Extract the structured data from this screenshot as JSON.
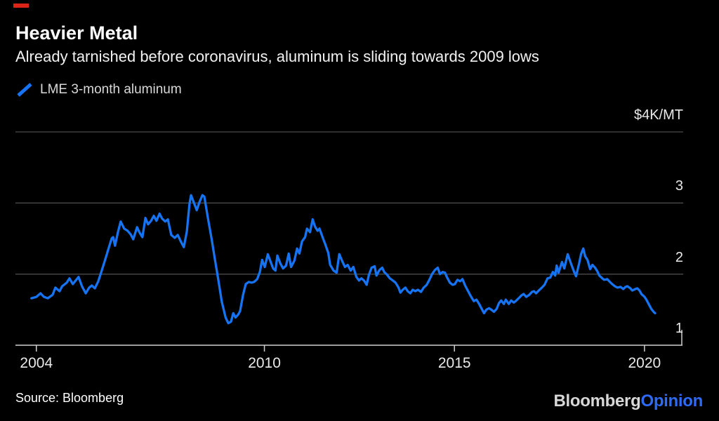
{
  "accent_color": "#dd2418",
  "header": {
    "title": "Heavier Metal",
    "subtitle": "Already tarnished before coronavirus, aluminum is sliding towards 2009 lows"
  },
  "legend": {
    "label": "LME 3-month aluminum",
    "color": "#1673f2"
  },
  "footer": {
    "source": "Source: Bloomberg",
    "logo": {
      "part1": "Bloomberg",
      "part2": "Opinion",
      "part2_color": "#2d6af5"
    }
  },
  "chart_data": {
    "type": "line",
    "title": "Heavier Metal",
    "ylabel": "$/MT",
    "xlabel": "",
    "grid": "horizontal",
    "legend_position": "top-left",
    "colors": {
      "gridline": "#4a4a4a",
      "axis": "#cfcfcf",
      "line": "#1673f2"
    },
    "x_range": [
      2003.45,
      2021.0
    ],
    "y_range": [
      1000,
      4000
    ],
    "y_ticks": [
      {
        "label": "$4K/MT",
        "value": 4000
      },
      {
        "label": "3",
        "value": 3000
      },
      {
        "label": "2",
        "value": 2000
      },
      {
        "label": "1",
        "value": 1000
      }
    ],
    "x_ticks": [
      {
        "label": "2004",
        "value": 2004
      },
      {
        "label": "2010",
        "value": 2010
      },
      {
        "label": "2015",
        "value": 2015
      },
      {
        "label": "2020",
        "value": 2020
      }
    ],
    "series": [
      {
        "name": "LME 3-month aluminum",
        "color": "#1673f2",
        "points": [
          [
            2003.87,
            1660
          ],
          [
            2004.0,
            1680
          ],
          [
            2004.11,
            1730
          ],
          [
            2004.2,
            1680
          ],
          [
            2004.3,
            1660
          ],
          [
            2004.43,
            1710
          ],
          [
            2004.5,
            1810
          ],
          [
            2004.61,
            1760
          ],
          [
            2004.68,
            1830
          ],
          [
            2004.8,
            1880
          ],
          [
            2004.87,
            1940
          ],
          [
            2004.96,
            1860
          ],
          [
            2005.05,
            1920
          ],
          [
            2005.11,
            1960
          ],
          [
            2005.2,
            1830
          ],
          [
            2005.3,
            1730
          ],
          [
            2005.39,
            1810
          ],
          [
            2005.46,
            1840
          ],
          [
            2005.54,
            1800
          ],
          [
            2005.63,
            1900
          ],
          [
            2005.72,
            2050
          ],
          [
            2005.81,
            2200
          ],
          [
            2005.91,
            2380
          ],
          [
            2005.98,
            2500
          ],
          [
            2006.02,
            2520
          ],
          [
            2006.07,
            2400
          ],
          [
            2006.15,
            2600
          ],
          [
            2006.22,
            2740
          ],
          [
            2006.31,
            2640
          ],
          [
            2006.4,
            2610
          ],
          [
            2006.48,
            2560
          ],
          [
            2006.55,
            2490
          ],
          [
            2006.65,
            2660
          ],
          [
            2006.72,
            2580
          ],
          [
            2006.79,
            2520
          ],
          [
            2006.87,
            2790
          ],
          [
            2006.94,
            2700
          ],
          [
            2007.02,
            2750
          ],
          [
            2007.09,
            2820
          ],
          [
            2007.16,
            2750
          ],
          [
            2007.24,
            2850
          ],
          [
            2007.31,
            2780
          ],
          [
            2007.39,
            2740
          ],
          [
            2007.46,
            2770
          ],
          [
            2007.55,
            2550
          ],
          [
            2007.64,
            2510
          ],
          [
            2007.72,
            2550
          ],
          [
            2007.81,
            2450
          ],
          [
            2007.88,
            2380
          ],
          [
            2007.96,
            2600
          ],
          [
            2008.03,
            2990
          ],
          [
            2008.07,
            3110
          ],
          [
            2008.14,
            3010
          ],
          [
            2008.22,
            2900
          ],
          [
            2008.29,
            3010
          ],
          [
            2008.37,
            3110
          ],
          [
            2008.42,
            3090
          ],
          [
            2008.51,
            2800
          ],
          [
            2008.61,
            2500
          ],
          [
            2008.7,
            2200
          ],
          [
            2008.79,
            1910
          ],
          [
            2008.88,
            1610
          ],
          [
            2008.98,
            1390
          ],
          [
            2009.05,
            1310
          ],
          [
            2009.12,
            1330
          ],
          [
            2009.18,
            1450
          ],
          [
            2009.24,
            1390
          ],
          [
            2009.31,
            1430
          ],
          [
            2009.36,
            1480
          ],
          [
            2009.44,
            1710
          ],
          [
            2009.51,
            1860
          ],
          [
            2009.59,
            1890
          ],
          [
            2009.66,
            1880
          ],
          [
            2009.73,
            1890
          ],
          [
            2009.81,
            1930
          ],
          [
            2009.88,
            2030
          ],
          [
            2009.94,
            2200
          ],
          [
            2010.01,
            2100
          ],
          [
            2010.09,
            2280
          ],
          [
            2010.16,
            2180
          ],
          [
            2010.23,
            2080
          ],
          [
            2010.29,
            2050
          ],
          [
            2010.34,
            2260
          ],
          [
            2010.42,
            2150
          ],
          [
            2010.49,
            2080
          ],
          [
            2010.57,
            2120
          ],
          [
            2010.64,
            2290
          ],
          [
            2010.7,
            2100
          ],
          [
            2010.79,
            2190
          ],
          [
            2010.86,
            2360
          ],
          [
            2010.92,
            2290
          ],
          [
            2010.99,
            2460
          ],
          [
            2011.07,
            2520
          ],
          [
            2011.12,
            2640
          ],
          [
            2011.2,
            2590
          ],
          [
            2011.27,
            2770
          ],
          [
            2011.33,
            2670
          ],
          [
            2011.4,
            2610
          ],
          [
            2011.45,
            2640
          ],
          [
            2011.53,
            2520
          ],
          [
            2011.6,
            2420
          ],
          [
            2011.68,
            2300
          ],
          [
            2011.73,
            2130
          ],
          [
            2011.82,
            2050
          ],
          [
            2011.9,
            2020
          ],
          [
            2011.97,
            2280
          ],
          [
            2012.05,
            2180
          ],
          [
            2012.12,
            2100
          ],
          [
            2012.19,
            2130
          ],
          [
            2012.27,
            2050
          ],
          [
            2012.34,
            2100
          ],
          [
            2012.42,
            1960
          ],
          [
            2012.49,
            1910
          ],
          [
            2012.55,
            1940
          ],
          [
            2012.62,
            1910
          ],
          [
            2012.69,
            1850
          ],
          [
            2012.75,
            1990
          ],
          [
            2012.82,
            2090
          ],
          [
            2012.9,
            2110
          ],
          [
            2012.95,
            1980
          ],
          [
            2013.03,
            2060
          ],
          [
            2013.1,
            2090
          ],
          [
            2013.15,
            2030
          ],
          [
            2013.23,
            1990
          ],
          [
            2013.3,
            1940
          ],
          [
            2013.38,
            1910
          ],
          [
            2013.45,
            1880
          ],
          [
            2013.53,
            1810
          ],
          [
            2013.58,
            1740
          ],
          [
            2013.64,
            1780
          ],
          [
            2013.71,
            1810
          ],
          [
            2013.77,
            1760
          ],
          [
            2013.84,
            1730
          ],
          [
            2013.9,
            1780
          ],
          [
            2013.97,
            1760
          ],
          [
            2014.04,
            1780
          ],
          [
            2014.12,
            1750
          ],
          [
            2014.19,
            1810
          ],
          [
            2014.27,
            1850
          ],
          [
            2014.34,
            1920
          ],
          [
            2014.41,
            2000
          ],
          [
            2014.49,
            2060
          ],
          [
            2014.56,
            2090
          ],
          [
            2014.62,
            2000
          ],
          [
            2014.69,
            2030
          ],
          [
            2014.75,
            2020
          ],
          [
            2014.8,
            1960
          ],
          [
            2014.88,
            1880
          ],
          [
            2014.95,
            1850
          ],
          [
            2015.01,
            1860
          ],
          [
            2015.08,
            1920
          ],
          [
            2015.15,
            1900
          ],
          [
            2015.21,
            1930
          ],
          [
            2015.28,
            1840
          ],
          [
            2015.36,
            1760
          ],
          [
            2015.43,
            1690
          ],
          [
            2015.51,
            1620
          ],
          [
            2015.58,
            1640
          ],
          [
            2015.65,
            1580
          ],
          [
            2015.71,
            1520
          ],
          [
            2015.78,
            1450
          ],
          [
            2015.84,
            1500
          ],
          [
            2015.91,
            1520
          ],
          [
            2015.97,
            1500
          ],
          [
            2016.04,
            1470
          ],
          [
            2016.11,
            1510
          ],
          [
            2016.17,
            1590
          ],
          [
            2016.23,
            1630
          ],
          [
            2016.3,
            1580
          ],
          [
            2016.35,
            1640
          ],
          [
            2016.43,
            1580
          ],
          [
            2016.49,
            1630
          ],
          [
            2016.56,
            1600
          ],
          [
            2016.61,
            1620
          ],
          [
            2016.69,
            1660
          ],
          [
            2016.76,
            1700
          ],
          [
            2016.82,
            1720
          ],
          [
            2016.89,
            1680
          ],
          [
            2016.97,
            1710
          ],
          [
            2017.04,
            1750
          ],
          [
            2017.09,
            1760
          ],
          [
            2017.15,
            1730
          ],
          [
            2017.22,
            1770
          ],
          [
            2017.3,
            1810
          ],
          [
            2017.37,
            1850
          ],
          [
            2017.45,
            1940
          ],
          [
            2017.52,
            1950
          ],
          [
            2017.59,
            2030
          ],
          [
            2017.65,
            1980
          ],
          [
            2017.69,
            2120
          ],
          [
            2017.74,
            2020
          ],
          [
            2017.83,
            2170
          ],
          [
            2017.89,
            2080
          ],
          [
            2017.98,
            2280
          ],
          [
            2018.08,
            2130
          ],
          [
            2018.15,
            2030
          ],
          [
            2018.2,
            1970
          ],
          [
            2018.28,
            2150
          ],
          [
            2018.33,
            2280
          ],
          [
            2018.39,
            2360
          ],
          [
            2018.44,
            2250
          ],
          [
            2018.5,
            2200
          ],
          [
            2018.57,
            2070
          ],
          [
            2018.63,
            2130
          ],
          [
            2018.7,
            2090
          ],
          [
            2018.76,
            2040
          ],
          [
            2018.81,
            1980
          ],
          [
            2018.89,
            1940
          ],
          [
            2018.94,
            1920
          ],
          [
            2019.02,
            1930
          ],
          [
            2019.09,
            1890
          ],
          [
            2019.15,
            1860
          ],
          [
            2019.22,
            1830
          ],
          [
            2019.29,
            1810
          ],
          [
            2019.37,
            1820
          ],
          [
            2019.44,
            1790
          ],
          [
            2019.5,
            1820
          ],
          [
            2019.55,
            1830
          ],
          [
            2019.63,
            1800
          ],
          [
            2019.68,
            1770
          ],
          [
            2019.76,
            1790
          ],
          [
            2019.81,
            1800
          ],
          [
            2019.87,
            1770
          ],
          [
            2019.92,
            1720
          ],
          [
            2020.0,
            1680
          ],
          [
            2020.05,
            1640
          ],
          [
            2020.11,
            1580
          ],
          [
            2020.18,
            1510
          ],
          [
            2020.24,
            1470
          ],
          [
            2020.28,
            1450
          ]
        ]
      }
    ]
  }
}
